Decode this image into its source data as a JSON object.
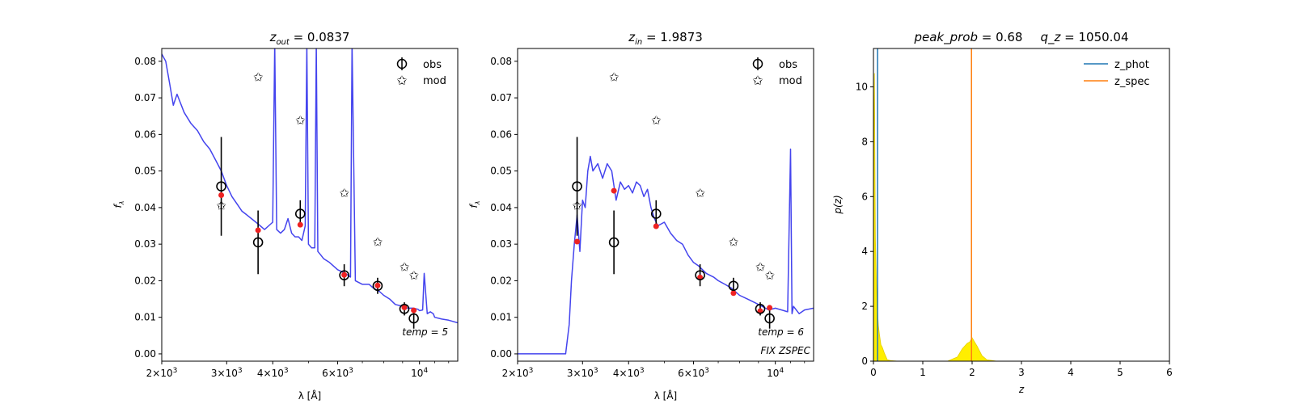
{
  "chart_data": [
    {
      "type": "scatter",
      "title": "$z_{out} = 0.0837$",
      "title_parts": [
        "z",
        "out",
        " = 0.0837"
      ],
      "xlabel": "λ [Å]",
      "ylabel": "f_λ",
      "xscale": "log",
      "xlim": [
        2000,
        12700
      ],
      "ylim": [
        -0.002,
        0.0835
      ],
      "x_ticks": [
        {
          "value": 2000,
          "label": "2×10",
          "exp": "3"
        },
        {
          "value": 3000,
          "label": "3×10",
          "exp": "3"
        },
        {
          "value": 4000,
          "label": "4×10",
          "exp": "3"
        },
        {
          "value": 6000,
          "label": "6×10",
          "exp": "3"
        },
        {
          "value": 10000,
          "label": "10",
          "exp": "4"
        }
      ],
      "y_ticks": [
        0.0,
        0.01,
        0.02,
        0.03,
        0.04,
        0.05,
        0.06,
        0.07,
        0.08
      ],
      "legend": {
        "position": "top-right",
        "entries": [
          "obs",
          "mod"
        ]
      },
      "annotation": "temp = 5",
      "annotation2": "",
      "series": [
        {
          "name": "obs",
          "marker": "open-circle",
          "color": "#000000",
          "x": [
            2900,
            3650,
            4750,
            6250,
            7700,
            9100,
            9650
          ],
          "y": [
            0.0458,
            0.0305,
            0.0383,
            0.0215,
            0.0186,
            0.0123,
            0.0097
          ],
          "yerr": [
            0.0135,
            0.0087,
            0.0037,
            0.003,
            0.0022,
            0.0018,
            0.0028
          ]
        },
        {
          "name": "mod",
          "marker": "star",
          "color": "#f5a623",
          "x": [
            2900,
            3650,
            4750,
            6250,
            7700,
            9100,
            9650
          ],
          "y": [
            0.0405,
            0.0757,
            0.0638,
            0.044,
            0.0306,
            0.0237,
            0.0214
          ]
        },
        {
          "name": "",
          "marker": "dot",
          "color": "#ee2222",
          "x": [
            2900,
            3650,
            4750,
            6250,
            7700,
            9100,
            9650
          ],
          "y": [
            0.0434,
            0.0338,
            0.0353,
            0.0216,
            0.0187,
            0.0127,
            0.0119
          ]
        },
        {
          "name": "",
          "type": "line",
          "color": "#4444ee",
          "x": [
            2000,
            2050,
            2100,
            2150,
            2200,
            2300,
            2400,
            2500,
            2600,
            2700,
            2800,
            2900,
            3000,
            3100,
            3200,
            3300,
            3400,
            3500,
            3600,
            3700,
            3800,
            3900,
            4000,
            4050,
            4100,
            4200,
            4300,
            4400,
            4500,
            4600,
            4700,
            4800,
            4900,
            4950,
            5000,
            5100,
            5200,
            5250,
            5300,
            5400,
            5500,
            5700,
            6000,
            6300,
            6500,
            6563,
            6700,
            7000,
            7300,
            7500,
            7800,
            8000,
            8300,
            8600,
            9000,
            9300,
            9600,
            9900,
            10000,
            10200,
            10300,
            10500,
            10700,
            10900,
            11000,
            11500,
            12000,
            12700
          ],
          "y": [
            0.082,
            0.08,
            0.074,
            0.068,
            0.071,
            0.066,
            0.063,
            0.061,
            0.058,
            0.056,
            0.053,
            0.05,
            0.046,
            0.043,
            0.041,
            0.039,
            0.038,
            0.037,
            0.036,
            0.035,
            0.034,
            0.035,
            0.036,
            0.085,
            0.034,
            0.033,
            0.034,
            0.037,
            0.033,
            0.032,
            0.032,
            0.031,
            0.035,
            0.085,
            0.03,
            0.029,
            0.029,
            0.085,
            0.028,
            0.027,
            0.026,
            0.025,
            0.023,
            0.022,
            0.021,
            0.085,
            0.02,
            0.019,
            0.019,
            0.018,
            0.017,
            0.016,
            0.015,
            0.0135,
            0.013,
            0.0125,
            0.0125,
            0.0122,
            0.0118,
            0.012,
            0.022,
            0.011,
            0.0115,
            0.011,
            0.01,
            0.0095,
            0.0092,
            0.0085
          ]
        }
      ]
    },
    {
      "type": "scatter",
      "title": "$z_{in} = 1.9873$",
      "title_parts": [
        "z",
        "in",
        " = 1.9873"
      ],
      "xlabel": "λ [Å]",
      "ylabel": "f_λ",
      "xscale": "log",
      "xlim": [
        2000,
        12700
      ],
      "ylim": [
        -0.002,
        0.0835
      ],
      "x_ticks": [
        {
          "value": 2000,
          "label": "2×10",
          "exp": "3"
        },
        {
          "value": 3000,
          "label": "3×10",
          "exp": "3"
        },
        {
          "value": 4000,
          "label": "4×10",
          "exp": "3"
        },
        {
          "value": 6000,
          "label": "6×10",
          "exp": "3"
        },
        {
          "value": 10000,
          "label": "10",
          "exp": "4"
        }
      ],
      "y_ticks": [
        0.0,
        0.01,
        0.02,
        0.03,
        0.04,
        0.05,
        0.06,
        0.07,
        0.08
      ],
      "legend": {
        "position": "top-right",
        "entries": [
          "obs",
          "mod"
        ]
      },
      "annotation": "temp = 6",
      "annotation2": "FIX ZSPEC",
      "series": [
        {
          "name": "obs",
          "marker": "open-circle",
          "color": "#000000",
          "x": [
            2900,
            3650,
            4750,
            6250,
            7700,
            9100,
            9650
          ],
          "y": [
            0.0458,
            0.0305,
            0.0383,
            0.0215,
            0.0186,
            0.0123,
            0.0097
          ],
          "yerr": [
            0.0135,
            0.0087,
            0.0037,
            0.003,
            0.0022,
            0.0018,
            0.0028
          ]
        },
        {
          "name": "mod",
          "marker": "star",
          "color": "#f5a623",
          "x": [
            2900,
            3650,
            4750,
            6250,
            7700,
            9100,
            9650
          ],
          "y": [
            0.0405,
            0.0757,
            0.0638,
            0.044,
            0.0306,
            0.0237,
            0.0214
          ]
        },
        {
          "name": "",
          "marker": "dot",
          "color": "#ee2222",
          "x": [
            2900,
            3650,
            4750,
            6250,
            7700,
            9100,
            9650
          ],
          "y": [
            0.0307,
            0.0446,
            0.0349,
            0.0209,
            0.0166,
            0.0117,
            0.0126
          ]
        },
        {
          "name": "",
          "type": "line",
          "color": "#4444ee",
          "x": [
            2000,
            2700,
            2760,
            2800,
            2850,
            2900,
            2950,
            3000,
            3050,
            3100,
            3150,
            3200,
            3300,
            3400,
            3500,
            3600,
            3700,
            3800,
            3900,
            4000,
            4100,
            4200,
            4300,
            4400,
            4500,
            4600,
            4700,
            4800,
            5000,
            5200,
            5400,
            5600,
            5800,
            6000,
            6200,
            6500,
            6800,
            7000,
            7300,
            7600,
            8000,
            8400,
            8800,
            9200,
            9600,
            10000,
            10400,
            10800,
            11000,
            11100,
            11200,
            11600,
            12000,
            12700
          ],
          "y": [
            0.0,
            0.0,
            0.008,
            0.02,
            0.03,
            0.038,
            0.028,
            0.042,
            0.04,
            0.05,
            0.054,
            0.05,
            0.052,
            0.048,
            0.052,
            0.05,
            0.042,
            0.047,
            0.045,
            0.046,
            0.044,
            0.047,
            0.046,
            0.043,
            0.045,
            0.04,
            0.037,
            0.035,
            0.036,
            0.033,
            0.031,
            0.03,
            0.027,
            0.025,
            0.024,
            0.022,
            0.021,
            0.02,
            0.019,
            0.018,
            0.016,
            0.015,
            0.014,
            0.013,
            0.012,
            0.0125,
            0.012,
            0.0115,
            0.056,
            0.011,
            0.013,
            0.011,
            0.012,
            0.0125
          ]
        }
      ]
    },
    {
      "type": "line",
      "title": "peak_prob = 0.68      q_z = 1050.04",
      "title_parts": [
        "peak_prob",
        " = 0.68",
        "q_z",
        " = 1050.04"
      ],
      "xlabel": "z",
      "ylabel": "p(z)",
      "xlim": [
        0,
        6
      ],
      "ylim": [
        0,
        11.4
      ],
      "x_ticks": [
        0,
        1,
        2,
        3,
        4,
        5,
        6
      ],
      "y_ticks": [
        0,
        2,
        4,
        6,
        8,
        10
      ],
      "legend": {
        "position": "top-right",
        "entries": [
          "z_phot",
          "z_spec"
        ]
      },
      "vlines": [
        {
          "name": "z_phot",
          "x": 0.0837,
          "color": "#1f77b4"
        },
        {
          "name": "z_spec",
          "x": 1.9873,
          "color": "#ff7f0e"
        }
      ],
      "pdf_fill": {
        "color": "#ffee00",
        "x": [
          0.0,
          0.02,
          0.04,
          0.06,
          0.08,
          0.1,
          0.12,
          0.15,
          0.18,
          0.22,
          0.28,
          0.35,
          0.5,
          1.0,
          1.5,
          1.7,
          1.8,
          1.9,
          1.95,
          2.0,
          2.05,
          2.1,
          2.2,
          2.3,
          2.5,
          3.0,
          5.0
        ],
        "y": [
          6.0,
          10.5,
          4.5,
          2.8,
          1.9,
          1.3,
          1.0,
          0.6,
          0.5,
          0.3,
          0.05,
          0.02,
          0.0,
          0.0,
          0.0,
          0.15,
          0.45,
          0.65,
          0.7,
          0.85,
          0.7,
          0.55,
          0.2,
          0.05,
          0.0,
          0.0,
          0.0
        ]
      }
    }
  ]
}
